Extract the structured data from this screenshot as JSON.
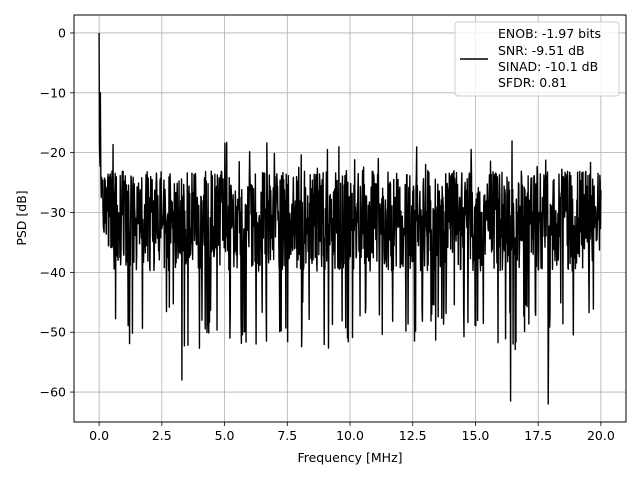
{
  "chart_data": {
    "type": "line",
    "title": "",
    "xlabel": "Frequency [MHz]",
    "ylabel": "PSD [dB]",
    "xlim": [
      -1.0,
      21.0
    ],
    "ylim": [
      -65.0,
      3.0
    ],
    "x_ticks": [
      0.0,
      2.5,
      5.0,
      7.5,
      10.0,
      12.5,
      15.0,
      17.5,
      20.0
    ],
    "x_tick_labels": [
      "0.0",
      "2.5",
      "5.0",
      "7.5",
      "10.0",
      "12.5",
      "15.0",
      "17.5",
      "20.0"
    ],
    "y_ticks": [
      0,
      -10,
      -20,
      -30,
      -40,
      -50,
      -60
    ],
    "y_tick_labels": [
      "0",
      "−10",
      "−20",
      "−30",
      "−40",
      "−50",
      "−60"
    ],
    "grid": true,
    "legend_position": "top-right",
    "series": [
      {
        "color": "#000000",
        "legend_lines": [
          "ENOB: -1.97 bits",
          "SNR: -9.51 dB",
          "SINAD: -10.1 dB",
          "SFDR: 0.81"
        ],
        "x_range": [
          0.0,
          20.0
        ],
        "notable_points": [
          {
            "x": 0.0,
            "y": 0.0
          },
          {
            "x": 0.05,
            "y": -10.0
          },
          {
            "x": 3.3,
            "y": -58.0
          },
          {
            "x": 16.4,
            "y": -61.5
          },
          {
            "x": 17.9,
            "y": -62.0
          }
        ],
        "noise_floor_db": -32.0,
        "upper_envelope_db": -22.0,
        "lower_envelope_db": -45.0
      }
    ]
  }
}
